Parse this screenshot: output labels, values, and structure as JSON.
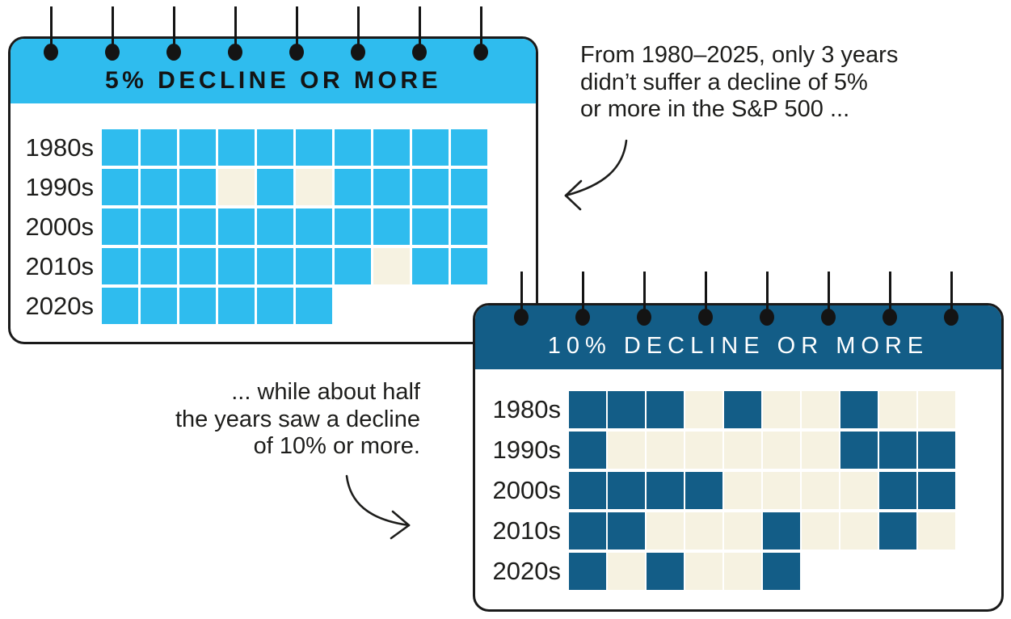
{
  "figure": {
    "background": "#FFFFFF"
  },
  "annotations": {
    "note_5pct": {
      "lines": [
        "From 1980–2025, only 3 years",
        "didn’t suffer a decline of 5%",
        "or more in the S&P 500 ..."
      ]
    },
    "note_10pct": {
      "lines": [
        "... while about half",
        "the years saw a decline",
        "of 10% or more."
      ]
    }
  },
  "chart_data": [
    {
      "type": "heatmap",
      "title": "5% DECLINE OR MORE",
      "subtitle": "",
      "categories": [
        "1980s",
        "1990s",
        "2000s",
        "2010s",
        "2020s"
      ],
      "rows": [
        {
          "label": "1980s",
          "start_year": 1980,
          "filled": [
            1,
            1,
            1,
            1,
            1,
            1,
            1,
            1,
            1,
            1
          ]
        },
        {
          "label": "1990s",
          "start_year": 1990,
          "filled": [
            1,
            1,
            1,
            0,
            1,
            0,
            1,
            1,
            1,
            1
          ]
        },
        {
          "label": "2000s",
          "start_year": 2000,
          "filled": [
            1,
            1,
            1,
            1,
            1,
            1,
            1,
            1,
            1,
            1
          ]
        },
        {
          "label": "2010s",
          "start_year": 2010,
          "filled": [
            1,
            1,
            1,
            1,
            1,
            1,
            1,
            0,
            1,
            1
          ]
        },
        {
          "label": "2020s",
          "start_year": 2020,
          "filled": [
            1,
            1,
            1,
            1,
            1,
            1
          ]
        }
      ],
      "years_without_decline": [
        1993,
        1995,
        2017
      ],
      "year_range": [
        1980,
        2025
      ],
      "pin_count": 8,
      "colors": {
        "filled": "#2FBCEE",
        "empty": "#F6F2E1",
        "header_bg": "#2FBCEE",
        "header_text": "#141414"
      }
    },
    {
      "type": "heatmap",
      "title": "10% DECLINE OR MORE",
      "subtitle": "",
      "categories": [
        "1980s",
        "1990s",
        "2000s",
        "2010s",
        "2020s"
      ],
      "rows": [
        {
          "label": "1980s",
          "start_year": 1980,
          "filled": [
            1,
            1,
            1,
            0,
            1,
            0,
            0,
            1,
            0,
            0
          ]
        },
        {
          "label": "1990s",
          "start_year": 1990,
          "filled": [
            1,
            0,
            0,
            0,
            0,
            0,
            0,
            1,
            1,
            1
          ]
        },
        {
          "label": "2000s",
          "start_year": 2000,
          "filled": [
            1,
            1,
            1,
            1,
            0,
            0,
            0,
            0,
            1,
            1
          ]
        },
        {
          "label": "2010s",
          "start_year": 2010,
          "filled": [
            1,
            1,
            0,
            0,
            0,
            1,
            0,
            0,
            1,
            0
          ]
        },
        {
          "label": "2020s",
          "start_year": 2020,
          "filled": [
            1,
            0,
            1,
            0,
            0,
            1
          ]
        }
      ],
      "years_with_decline": [
        1980,
        1981,
        1982,
        1984,
        1987,
        1990,
        1997,
        1998,
        1999,
        2000,
        2001,
        2002,
        2003,
        2008,
        2009,
        2010,
        2011,
        2015,
        2018,
        2020,
        2022,
        2025
      ],
      "year_range": [
        1980,
        2025
      ],
      "pin_count": 8,
      "colors": {
        "filled": "#135D87",
        "empty": "#F6F2E1",
        "header_bg": "#135D87",
        "header_text": "#FFFFFF"
      }
    }
  ]
}
